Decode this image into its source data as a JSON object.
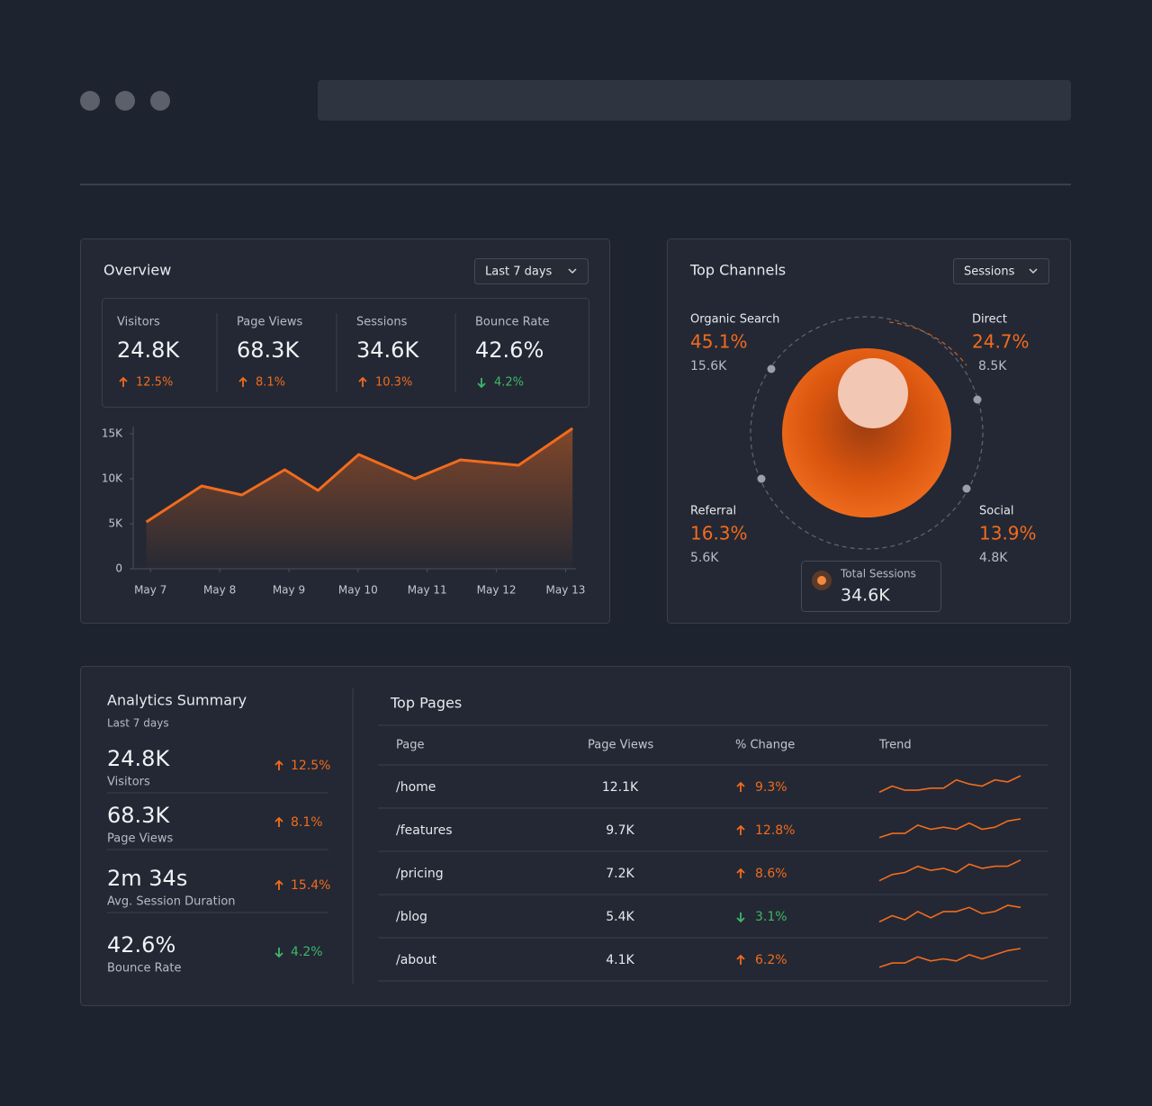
{
  "colors": {
    "up": "#f26b1d",
    "down": "#3fb768",
    "accent": "#f26b1d"
  },
  "overview": {
    "title": "Overview",
    "range": "Last 7 days",
    "metrics": [
      {
        "label": "Visitors",
        "value": "24.8K",
        "change": "12.5%",
        "direction": "up"
      },
      {
        "label": "Page Views",
        "value": "68.3K",
        "change": "8.1%",
        "direction": "up"
      },
      {
        "label": "Sessions",
        "value": "34.6K",
        "change": "10.3%",
        "direction": "up"
      },
      {
        "label": "Bounce Rate",
        "value": "42.6%",
        "change": "4.2%",
        "direction": "down"
      }
    ],
    "chart": {
      "type": "area",
      "x": [
        -0.06,
        0.74,
        1.32,
        1.94,
        2.42,
        3.01,
        3.82,
        4.48,
        5.32,
        6.1
      ],
      "values": [
        5200,
        9200,
        8200,
        11000,
        8700,
        12700,
        10000,
        12100,
        11500,
        15600
      ],
      "xlim": [
        -0.25,
        6.15
      ],
      "xticks": [
        {
          "value": 0,
          "label": "May 7"
        },
        {
          "value": 1,
          "label": "May 8"
        },
        {
          "value": 2,
          "label": "May 9"
        },
        {
          "value": 3,
          "label": "May 10"
        },
        {
          "value": 4,
          "label": "May 11"
        },
        {
          "value": 5,
          "label": "May 12"
        },
        {
          "value": 6,
          "label": "May 13"
        }
      ],
      "ylim": [
        0,
        15800
      ],
      "yticks": [
        0,
        {
          "value": 5000,
          "label": "5K"
        },
        {
          "value": 10000,
          "label": "10K"
        },
        {
          "value": 15000,
          "label": "15K"
        }
      ],
      "grid": false,
      "color": "#f26b1d"
    }
  },
  "channels": {
    "title": "Top Channels",
    "metric": "Sessions",
    "items": [
      {
        "name": "Organic Search",
        "percent": "45.1%",
        "sessions": "15.6K"
      },
      {
        "name": "Direct",
        "percent": "24.7%",
        "sessions": "8.5K"
      },
      {
        "name": "Referral",
        "percent": "16.3%",
        "sessions": "5.6K"
      },
      {
        "name": "Social",
        "percent": "13.9%",
        "sessions": "4.8K"
      }
    ],
    "total_label": "Total Sessions",
    "total": "34.6K"
  },
  "summary": {
    "title": "Analytics Summary",
    "subtitle": "Last 7 days",
    "items": [
      {
        "value": "24.8K",
        "label": "Visitors",
        "change": "12.5%",
        "direction": "up"
      },
      {
        "value": "68.3K",
        "label": "Page Views",
        "change": "8.1%",
        "direction": "up"
      },
      {
        "value": "2m 34s",
        "label": "Avg. Session Duration",
        "change": "15.4%",
        "direction": "up"
      },
      {
        "value": "42.6%",
        "label": "Bounce Rate",
        "change": "4.2%",
        "direction": "down"
      }
    ]
  },
  "pages": {
    "title": "Top Pages",
    "columns": [
      "Page",
      "Page Views",
      "% Change",
      "Trend"
    ],
    "rows": [
      {
        "page": "/home",
        "views": "12.1K",
        "change": "9.3%",
        "direction": "up",
        "trend": [
          2,
          5,
          3,
          3,
          4,
          4,
          8,
          6,
          5,
          8,
          7,
          10
        ]
      },
      {
        "page": "/features",
        "views": "9.7K",
        "change": "12.8%",
        "direction": "up",
        "trend": [
          1,
          3,
          3,
          7,
          5,
          6,
          5,
          8,
          5,
          6,
          9,
          10
        ]
      },
      {
        "page": "/pricing",
        "views": "7.2K",
        "change": "8.6%",
        "direction": "up",
        "trend": [
          1,
          4,
          5,
          8,
          6,
          7,
          5,
          9,
          7,
          8,
          8,
          11
        ]
      },
      {
        "page": "/blog",
        "views": "5.4K",
        "change": "3.1%",
        "direction": "down",
        "trend": [
          2,
          5,
          3,
          7,
          4,
          7,
          7,
          9,
          6,
          7,
          10,
          9
        ]
      },
      {
        "page": "/about",
        "views": "4.1K",
        "change": "6.2%",
        "direction": "up",
        "trend": [
          1,
          3,
          3,
          6,
          4,
          5,
          4,
          7,
          5,
          7,
          9,
          10
        ]
      }
    ]
  }
}
